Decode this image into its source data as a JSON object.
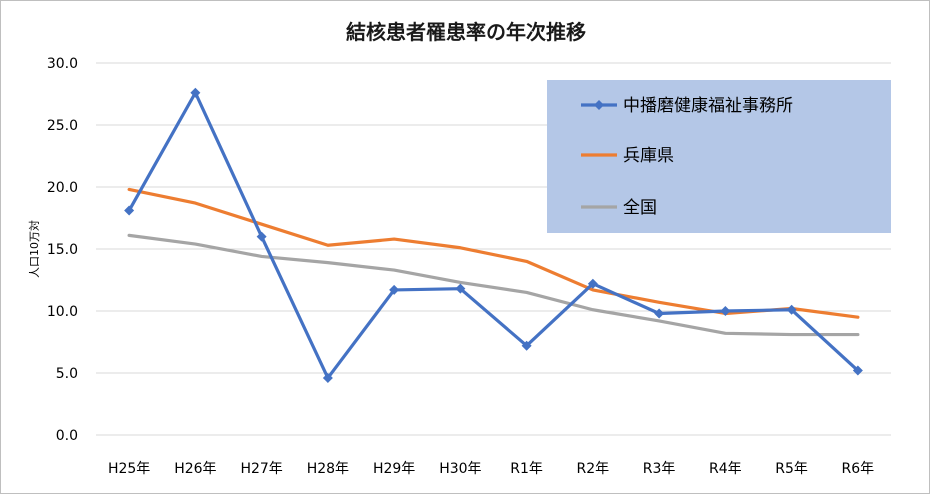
{
  "chart_data": {
    "type": "line",
    "title": "結核患者罹患率の年次推移",
    "xlabel": "",
    "ylabel": "人口10万対",
    "ylim": [
      0,
      30
    ],
    "yticks": [
      "0.0",
      "5.0",
      "10.0",
      "15.0",
      "20.0",
      "25.0",
      "30.0"
    ],
    "grid": "horizontal",
    "legend_position": "top-right",
    "categories": [
      "H25年",
      "H26年",
      "H27年",
      "H28年",
      "H29年",
      "H30年",
      "R1年",
      "R2年",
      "R3年",
      "R4年",
      "R5年",
      "R6年"
    ],
    "series": [
      {
        "name": "中播磨健康福祉事務所",
        "color": "#4472c4",
        "marker": "diamond",
        "values": [
          18.1,
          27.6,
          16.0,
          4.6,
          11.7,
          11.8,
          7.2,
          12.2,
          9.8,
          10.0,
          10.1,
          5.2
        ]
      },
      {
        "name": "兵庫県",
        "color": "#ed7d31",
        "marker": "none",
        "values": [
          19.8,
          18.7,
          17.0,
          15.3,
          15.8,
          15.1,
          14.0,
          11.7,
          10.7,
          9.8,
          10.2,
          9.5
        ]
      },
      {
        "name": "全国",
        "color": "#a5a5a5",
        "marker": "none",
        "values": [
          16.1,
          15.4,
          14.4,
          13.9,
          13.3,
          12.3,
          11.5,
          10.1,
          9.2,
          8.2,
          8.1,
          8.1
        ]
      }
    ]
  }
}
